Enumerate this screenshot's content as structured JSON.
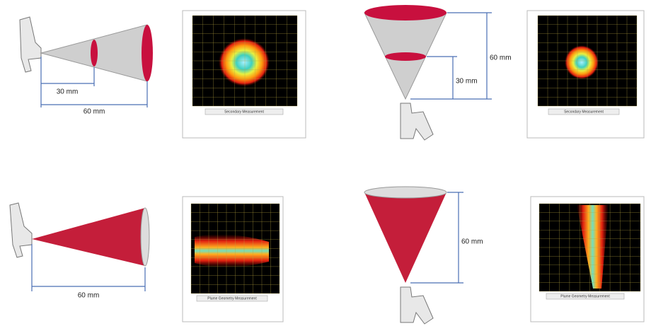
{
  "panels": [
    {
      "dimensions": [
        "30 mm",
        "60 mm"
      ],
      "plot_caption": "Secondary Measurement"
    },
    {
      "dimensions": [
        "60 mm",
        "30 mm"
      ],
      "plot_caption": "Secondary Measurement"
    },
    {
      "dimensions": [
        "60 mm"
      ],
      "plot_caption": "Plume Geometry Measurement"
    },
    {
      "dimensions": [
        "60 mm"
      ],
      "plot_caption": "Plume Geometry Measurement"
    }
  ]
}
